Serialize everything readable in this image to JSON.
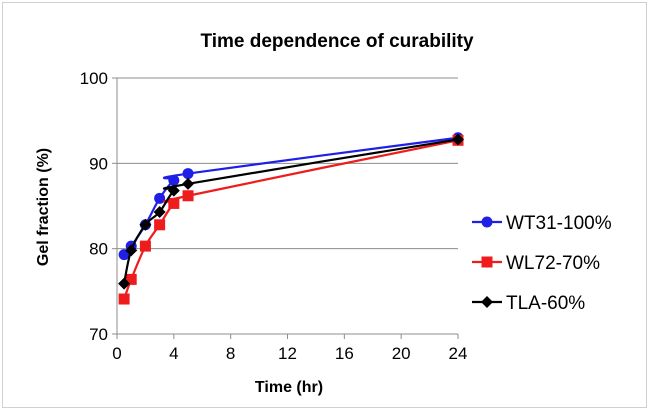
{
  "chart_data": {
    "type": "line",
    "title": "Time dependence of curability",
    "xlabel": "Time (hr)",
    "ylabel": "Gel fraction (%)",
    "xlim": [
      0,
      24
    ],
    "ylim": [
      70,
      100
    ],
    "x_ticks": [
      "0",
      "4",
      "8",
      "12",
      "16",
      "20",
      "24"
    ],
    "y_ticks": [
      "70",
      "80",
      "90",
      "100"
    ],
    "grid": "horizontal",
    "legend_position": "right",
    "series": [
      {
        "name": "WT31-100%",
        "color": "#1f1fe6",
        "marker": "circle",
        "x": [
          0.5,
          1,
          2,
          3,
          4,
          5,
          24
        ],
        "y": [
          79.3,
          80.3,
          82.8,
          85.9,
          88.0,
          88.8,
          93.0
        ]
      },
      {
        "name": "WL72-70%",
        "color": "#ee1c1c",
        "marker": "square",
        "x": [
          0.5,
          1,
          2,
          3,
          4,
          5,
          24
        ],
        "y": [
          74.1,
          76.4,
          80.3,
          82.8,
          85.3,
          86.2,
          92.7
        ]
      },
      {
        "name": "TLA-60%",
        "color": "#000000",
        "marker": "diamond",
        "x": [
          0.5,
          1,
          2,
          3,
          4,
          5,
          24
        ],
        "y": [
          75.9,
          79.8,
          82.8,
          84.3,
          86.8,
          87.6,
          92.8
        ]
      }
    ]
  }
}
